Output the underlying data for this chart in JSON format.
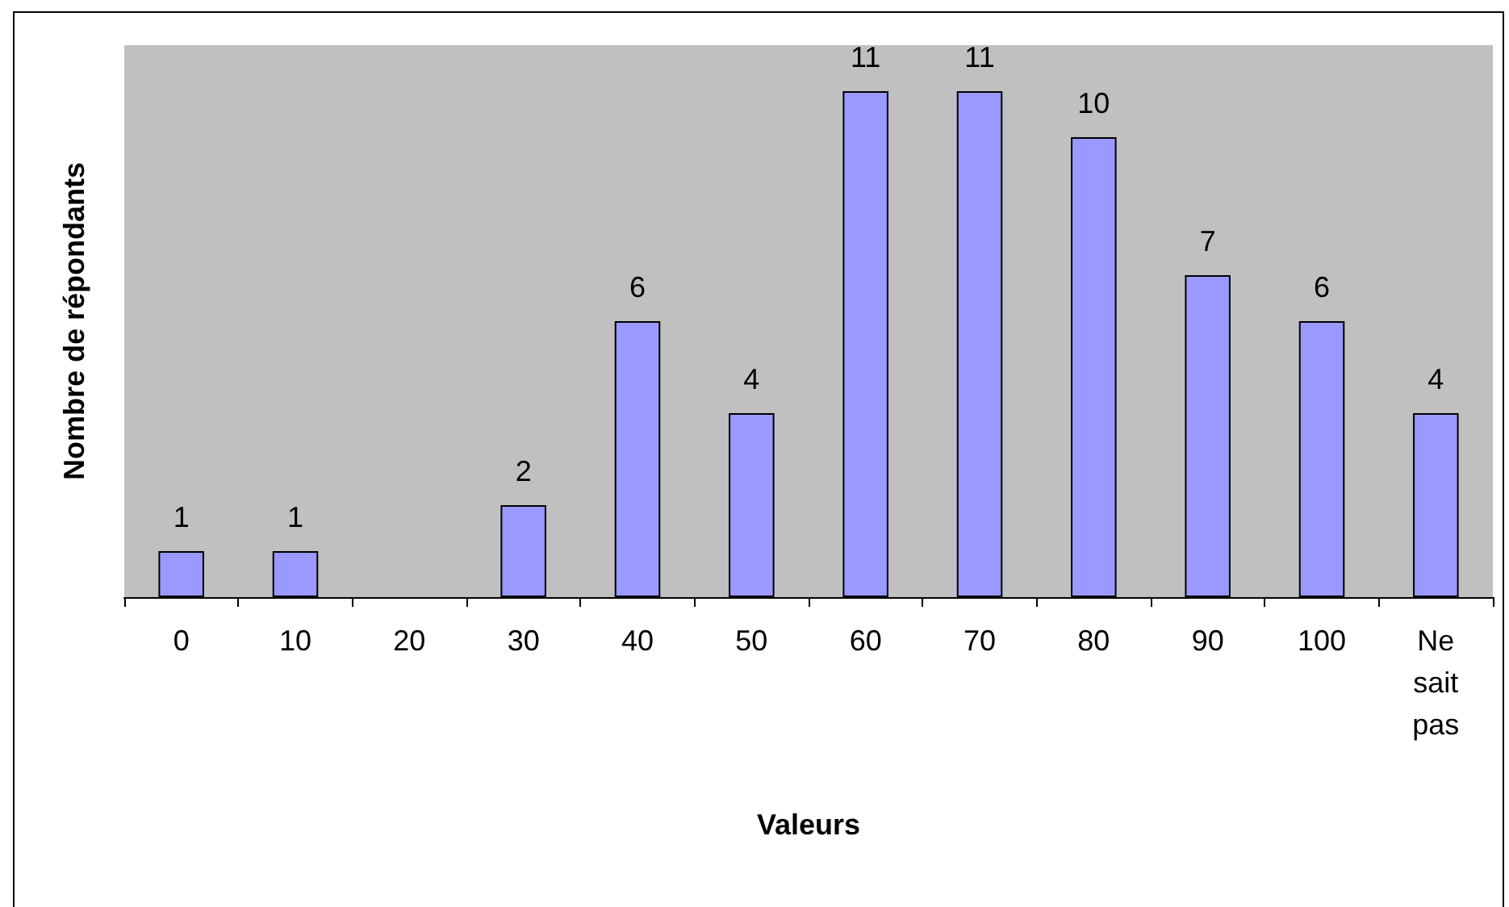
{
  "chart_data": {
    "type": "bar",
    "xlabel": "Valeurs",
    "ylabel": "Nombre de répondants",
    "categories": [
      "0",
      "10",
      "20",
      "30",
      "40",
      "50",
      "60",
      "70",
      "80",
      "90",
      "100",
      "Ne sait pas"
    ],
    "values": [
      1,
      1,
      0,
      2,
      6,
      4,
      11,
      11,
      10,
      7,
      6,
      4
    ],
    "value_labels": [
      "1",
      "1",
      null,
      "2",
      "6",
      "4",
      "11",
      "11",
      "10",
      "7",
      "6",
      "4"
    ],
    "color": "#9999ff",
    "grid": false
  }
}
